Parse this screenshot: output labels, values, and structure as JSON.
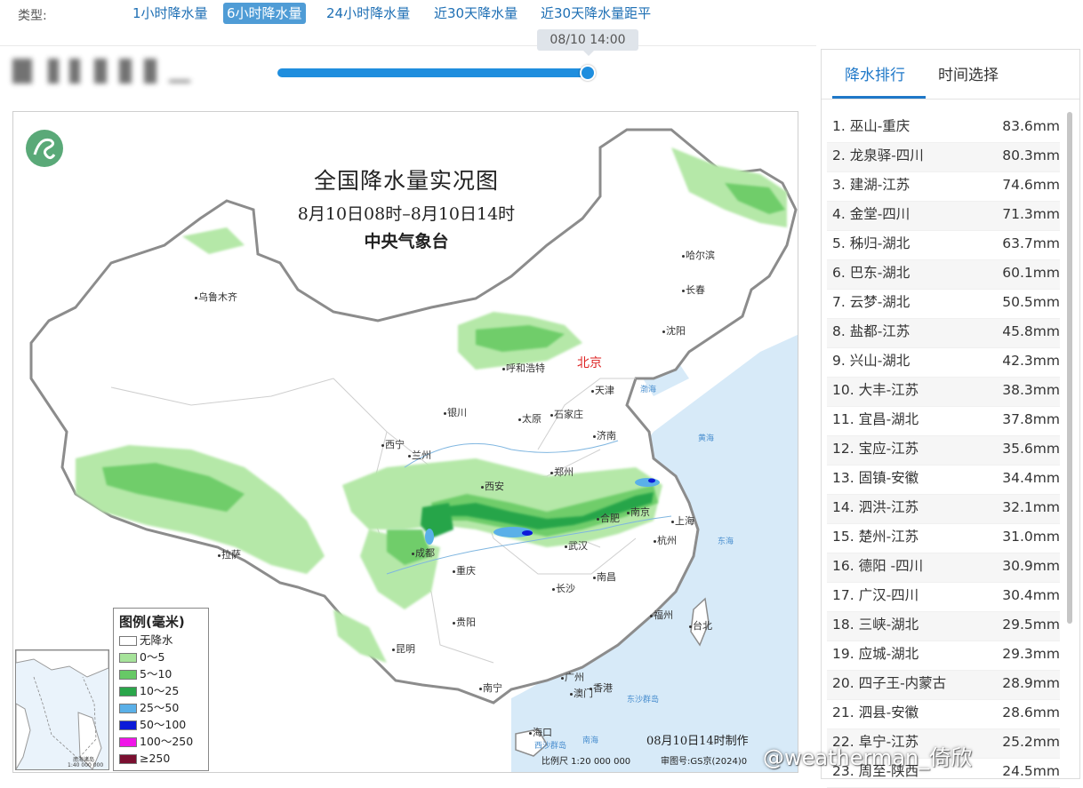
{
  "typebar": {
    "label": "类型:",
    "tabs": [
      {
        "label": "1小时降水量",
        "active": false
      },
      {
        "label": "6小时降水量",
        "active": true
      },
      {
        "label": "24小时降水量",
        "active": false
      },
      {
        "label": "近30天降水量",
        "active": false
      },
      {
        "label": "近30天降水量距平",
        "active": false
      }
    ]
  },
  "slider": {
    "time_label": "08/10 14:00",
    "position_fraction": 1.0
  },
  "map": {
    "title": "全国降水量实况图",
    "period": "8月10日08时–8月10日14时",
    "agency": "中央气象台",
    "made": "08月10日14时制作",
    "scale": "比例尺 1:20 000 000",
    "review": "审图号:GS京(2024)0",
    "cities": {
      "beijing": "北京",
      "urumqi": "乌鲁木齐",
      "harbin": "哈尔滨",
      "changchun": "长春",
      "shenyang": "沈阳",
      "hohhot": "呼和浩特",
      "tianjin": "天津",
      "yinchuan": "银川",
      "taiyuan": "太原",
      "shijiazhuang": "石家庄",
      "jinan": "济南",
      "xining": "西宁",
      "lanzhou": "兰州",
      "zhengzhou": "郑州",
      "xian": "西安",
      "nanjing": "南京",
      "hefei": "合肥",
      "shanghai": "上海",
      "lhasa": "拉萨",
      "chengdu": "成都",
      "wuhan": "武汉",
      "hangzhou": "杭州",
      "chongqing": "重庆",
      "nanchang": "南昌",
      "changsha": "长沙",
      "fuzhou": "福州",
      "taipei": "台北",
      "guiyang": "贵阳",
      "kunming": "昆明",
      "guangzhou": "广州",
      "nanning": "南宁",
      "macau": "澳门",
      "hongkong": "香港",
      "haikou": "海口"
    },
    "seas": {
      "bohai": "渤海",
      "huanghai": "黄海",
      "donghai": "东海",
      "nanhai": "南海",
      "dongsha": "东沙群岛",
      "xisha": "西沙群岛"
    },
    "inset": {
      "title": "南海诸岛",
      "scale": "1:40 000 000"
    },
    "legend": {
      "title": "图例(毫米)",
      "items": [
        {
          "label": "无降水",
          "color": "#ffffff"
        },
        {
          "label": "0～5",
          "color": "#a6e39a"
        },
        {
          "label": "5～10",
          "color": "#67c966"
        },
        {
          "label": "10～25",
          "color": "#2aa64a"
        },
        {
          "label": "25～50",
          "color": "#5ab0e8"
        },
        {
          "label": "50～100",
          "color": "#0c1ad8"
        },
        {
          "label": "100～250",
          "color": "#f015e8"
        },
        {
          "label": "≥250",
          "color": "#7a0f30"
        }
      ]
    }
  },
  "side": {
    "tabs": [
      {
        "label": "降水排行",
        "active": true
      },
      {
        "label": "时间选择",
        "active": false
      }
    ],
    "ranking": [
      {
        "name": "1. 巫山-重庆",
        "value": "83.6mm"
      },
      {
        "name": "2. 龙泉驿-四川",
        "value": "80.3mm"
      },
      {
        "name": "3. 建湖-江苏",
        "value": "74.6mm"
      },
      {
        "name": "4. 金堂-四川",
        "value": "71.3mm"
      },
      {
        "name": "5. 秭归-湖北",
        "value": "63.7mm"
      },
      {
        "name": "6. 巴东-湖北",
        "value": "60.1mm"
      },
      {
        "name": "7. 云梦-湖北",
        "value": "50.5mm"
      },
      {
        "name": "8. 盐都-江苏",
        "value": "45.8mm"
      },
      {
        "name": "9. 兴山-湖北",
        "value": "42.3mm"
      },
      {
        "name": "10. 大丰-江苏",
        "value": "38.3mm"
      },
      {
        "name": "11. 宜昌-湖北",
        "value": "37.8mm"
      },
      {
        "name": "12. 宝应-江苏",
        "value": "35.6mm"
      },
      {
        "name": "13. 固镇-安徽",
        "value": "34.4mm"
      },
      {
        "name": "14. 泗洪-江苏",
        "value": "32.1mm"
      },
      {
        "name": "15. 楚州-江苏",
        "value": "31.0mm"
      },
      {
        "name": "16. 德阳 -四川",
        "value": "30.9mm"
      },
      {
        "name": "17. 广汉-四川",
        "value": "30.4mm"
      },
      {
        "name": "18. 三峡-湖北",
        "value": "29.5mm"
      },
      {
        "name": "19. 应城-湖北",
        "value": "29.3mm"
      },
      {
        "name": "20. 四子王-内蒙古",
        "value": "28.9mm"
      },
      {
        "name": "21. 泗县-安徽",
        "value": "28.6mm"
      },
      {
        "name": "22. 阜宁-江苏",
        "value": "25.2mm"
      },
      {
        "name": "23. 周至-陕西",
        "value": "24.5mm"
      }
    ]
  },
  "watermark": "@weatherman_倚欣"
}
